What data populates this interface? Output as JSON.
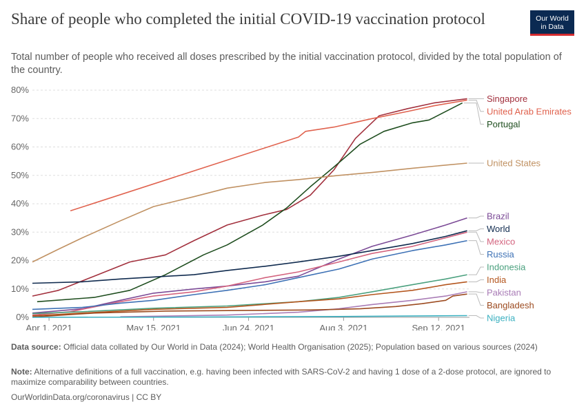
{
  "header": {
    "title": "Share of people who completed the initial COVID-19 vaccination protocol",
    "subtitle": "Total number of people who received all doses prescribed by the initial vaccination protocol, divided by the total population of the country.",
    "logo_line1": "Our World",
    "logo_line2": "in Data"
  },
  "footer": {
    "source_label": "Data source:",
    "source_text": "Official data collated by Our World in Data (2024); World Health Organisation (2025); Population based on various sources (2024)",
    "note_label": "Note:",
    "note_text": "Alternative definitions of a full vaccination, e.g. having been infected with SARS-CoV-2 and having 1 dose of a 2-dose protocol, are ignored to maximize comparability between countries.",
    "url_text": "OurWorldinData.org/coronavirus | CC BY"
  },
  "colors": {
    "background": "#ffffff",
    "grid": "#dddddd",
    "axis": "#999999",
    "logo_background": "#0b2a52",
    "logo_accent": "#d42b2f"
  },
  "chart_data": {
    "type": "line",
    "title": "Share of people who completed the initial COVID-19 vaccination protocol",
    "xlabel": "",
    "ylabel": "",
    "x_range": [
      "2021-03-25",
      "2021-09-25"
    ],
    "ylim": [
      0,
      80
    ],
    "y_ticks": [
      0,
      10,
      20,
      30,
      40,
      50,
      60,
      70,
      80
    ],
    "y_tick_labels": [
      "0%",
      "10%",
      "20%",
      "30%",
      "40%",
      "50%",
      "60%",
      "70%",
      "80%"
    ],
    "x_ticks": [
      "2021-04-01",
      "2021-05-15",
      "2021-06-24",
      "2021-08-03",
      "2021-09-12"
    ],
    "x_tick_labels": [
      "Apr 1, 2021",
      "May 15, 2021",
      "Jun 24, 2021",
      "Aug 3, 2021",
      "Sep 12, 2021"
    ],
    "grid": "horizontal dashed",
    "legend": "right",
    "series": [
      {
        "name": "Singapore",
        "color": "#a2303d",
        "points": [
          [
            "2021-03-25",
            7.5
          ],
          [
            "2021-04-05",
            9.5
          ],
          [
            "2021-04-20",
            14.5
          ],
          [
            "2021-05-05",
            19.5
          ],
          [
            "2021-05-20",
            22
          ],
          [
            "2021-06-01",
            27
          ],
          [
            "2021-06-15",
            32.5
          ],
          [
            "2021-06-30",
            36
          ],
          [
            "2021-07-10",
            38
          ],
          [
            "2021-07-20",
            43
          ],
          [
            "2021-07-30",
            52
          ],
          [
            "2021-08-08",
            63
          ],
          [
            "2021-08-18",
            71
          ],
          [
            "2021-08-30",
            73.5
          ],
          [
            "2021-09-10",
            75.5
          ],
          [
            "2021-09-24",
            77
          ]
        ]
      },
      {
        "name": "United Arab Emirates",
        "color": "#e0624e",
        "points": [
          [
            "2021-04-10",
            37.5
          ],
          [
            "2021-07-15",
            63.5
          ],
          [
            "2021-07-18",
            65.5
          ],
          [
            "2021-07-30",
            67
          ],
          [
            "2021-08-15",
            70
          ],
          [
            "2021-08-30",
            72.5
          ],
          [
            "2021-09-10",
            74.5
          ],
          [
            "2021-09-24",
            76.5
          ]
        ]
      },
      {
        "name": "Portugal",
        "color": "#1e4d1e",
        "points": [
          [
            "2021-03-27",
            5.5
          ],
          [
            "2021-04-20",
            7
          ],
          [
            "2021-05-05",
            9.5
          ],
          [
            "2021-05-20",
            15
          ],
          [
            "2021-06-05",
            22
          ],
          [
            "2021-06-15",
            25.5
          ],
          [
            "2021-06-30",
            32.5
          ],
          [
            "2021-07-10",
            38.5
          ],
          [
            "2021-07-20",
            46
          ],
          [
            "2021-07-30",
            53
          ],
          [
            "2021-08-10",
            61
          ],
          [
            "2021-08-20",
            65.5
          ],
          [
            "2021-09-01",
            68.5
          ],
          [
            "2021-09-08",
            69.5
          ],
          [
            "2021-09-22",
            75.5
          ]
        ]
      },
      {
        "name": "United States",
        "color": "#c09162",
        "points": [
          [
            "2021-03-25",
            19.5
          ],
          [
            "2021-04-05",
            24
          ],
          [
            "2021-04-15",
            28
          ],
          [
            "2021-05-01",
            34
          ],
          [
            "2021-05-15",
            39
          ],
          [
            "2021-06-01",
            42.5
          ],
          [
            "2021-06-15",
            45.5
          ],
          [
            "2021-07-01",
            47.5
          ],
          [
            "2021-07-15",
            48.5
          ],
          [
            "2021-08-01",
            50
          ],
          [
            "2021-08-15",
            51
          ],
          [
            "2021-09-01",
            52.5
          ],
          [
            "2021-09-24",
            54.3
          ]
        ]
      },
      {
        "name": "Brazil",
        "color": "#7b4a96",
        "points": [
          [
            "2021-03-25",
            1.5
          ],
          [
            "2021-04-15",
            3
          ],
          [
            "2021-05-01",
            6
          ],
          [
            "2021-05-15",
            8.5
          ],
          [
            "2021-06-01",
            10
          ],
          [
            "2021-06-15",
            11
          ],
          [
            "2021-07-01",
            12.5
          ],
          [
            "2021-07-15",
            14.5
          ],
          [
            "2021-08-01",
            20.5
          ],
          [
            "2021-08-15",
            25
          ],
          [
            "2021-09-01",
            29
          ],
          [
            "2021-09-15",
            32.5
          ],
          [
            "2021-09-24",
            35
          ]
        ]
      },
      {
        "name": "Mexico",
        "color": "#d3637e",
        "points": [
          [
            "2021-03-25",
            0.8
          ],
          [
            "2021-04-10",
            2
          ],
          [
            "2021-05-01",
            5.5
          ],
          [
            "2021-05-15",
            7.5
          ],
          [
            "2021-06-01",
            9
          ],
          [
            "2021-06-15",
            11
          ],
          [
            "2021-07-01",
            14
          ],
          [
            "2021-07-15",
            16
          ],
          [
            "2021-08-01",
            19.5
          ],
          [
            "2021-08-15",
            22.5
          ],
          [
            "2021-09-01",
            25
          ],
          [
            "2021-09-15",
            28
          ],
          [
            "2021-09-24",
            30
          ]
        ]
      },
      {
        "name": "World",
        "color": "#0f2a4e",
        "points": [
          [
            "2021-03-25",
            12
          ],
          [
            "2021-04-15",
            12.5
          ],
          [
            "2021-05-01",
            13.5
          ],
          [
            "2021-05-15",
            14.2
          ],
          [
            "2021-06-01",
            15
          ],
          [
            "2021-06-15",
            16.5
          ],
          [
            "2021-07-01",
            18
          ],
          [
            "2021-07-15",
            19.5
          ],
          [
            "2021-08-01",
            21.5
          ],
          [
            "2021-08-15",
            23.5
          ],
          [
            "2021-09-01",
            26
          ],
          [
            "2021-09-15",
            28.5
          ],
          [
            "2021-09-24",
            30.5
          ]
        ]
      },
      {
        "name": "Russia",
        "color": "#3d71b5",
        "points": [
          [
            "2021-03-25",
            2.8
          ],
          [
            "2021-04-15",
            3.5
          ],
          [
            "2021-05-01",
            5
          ],
          [
            "2021-05-15",
            6
          ],
          [
            "2021-06-01",
            8
          ],
          [
            "2021-06-15",
            9.5
          ],
          [
            "2021-07-01",
            11.5
          ],
          [
            "2021-07-15",
            14
          ],
          [
            "2021-08-01",
            17
          ],
          [
            "2021-08-15",
            20.5
          ],
          [
            "2021-09-01",
            23.5
          ],
          [
            "2021-09-15",
            25.5
          ],
          [
            "2021-09-24",
            27
          ]
        ]
      },
      {
        "name": "Indonesia",
        "color": "#4aa07e",
        "points": [
          [
            "2021-03-25",
            1.3
          ],
          [
            "2021-04-15",
            2
          ],
          [
            "2021-05-15",
            3.2
          ],
          [
            "2021-06-15",
            4
          ],
          [
            "2021-07-15",
            5.5
          ],
          [
            "2021-08-01",
            7
          ],
          [
            "2021-08-15",
            9
          ],
          [
            "2021-09-01",
            11.5
          ],
          [
            "2021-09-15",
            13.5
          ],
          [
            "2021-09-24",
            15
          ]
        ]
      },
      {
        "name": "India",
        "color": "#b4561e",
        "points": [
          [
            "2021-03-25",
            0.5
          ],
          [
            "2021-04-15",
            1.5
          ],
          [
            "2021-05-15",
            2.8
          ],
          [
            "2021-06-15",
            3.5
          ],
          [
            "2021-07-15",
            5.5
          ],
          [
            "2021-08-01",
            6.5
          ],
          [
            "2021-08-15",
            8
          ],
          [
            "2021-09-01",
            9.5
          ],
          [
            "2021-09-15",
            11.5
          ],
          [
            "2021-09-24",
            12.5
          ]
        ]
      },
      {
        "name": "Pakistan",
        "color": "#a97cb6",
        "points": [
          [
            "2021-05-01",
            0.2
          ],
          [
            "2021-06-15",
            0.8
          ],
          [
            "2021-07-15",
            1.8
          ],
          [
            "2021-08-01",
            3
          ],
          [
            "2021-08-15",
            4.5
          ],
          [
            "2021-09-01",
            6
          ],
          [
            "2021-09-15",
            7.5
          ],
          [
            "2021-09-24",
            9
          ]
        ]
      },
      {
        "name": "Bangladesh",
        "color": "#9c4a1f",
        "points": [
          [
            "2021-03-25",
            0.1
          ],
          [
            "2021-04-20",
            1.5
          ],
          [
            "2021-05-20",
            2.2
          ],
          [
            "2021-06-20",
            2.4
          ],
          [
            "2021-07-20",
            2.6
          ],
          [
            "2021-08-10",
            3
          ],
          [
            "2021-08-25",
            3.8
          ],
          [
            "2021-09-05",
            4.8
          ],
          [
            "2021-09-15",
            6
          ],
          [
            "2021-09-18",
            7.5
          ],
          [
            "2021-09-24",
            8.2
          ]
        ]
      },
      {
        "name": "Nigeria",
        "color": "#3bb0c0",
        "points": [
          [
            "2021-03-25",
            0
          ],
          [
            "2021-06-01",
            0.1
          ],
          [
            "2021-08-01",
            0.3
          ],
          [
            "2021-09-24",
            0.6
          ]
        ]
      }
    ]
  }
}
